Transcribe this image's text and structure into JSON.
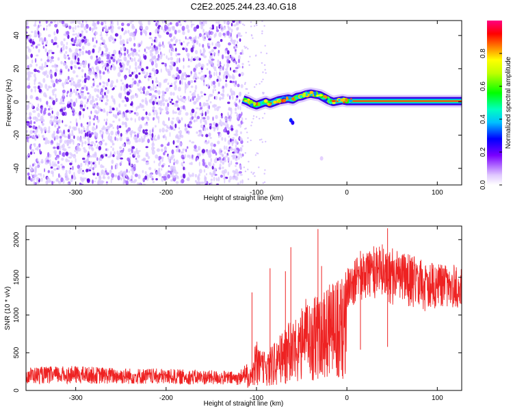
{
  "title": "C2E2.2025.244.23.40.G18",
  "colors": {
    "snr_line": "#ee2222",
    "scatter_base": "#a060ff",
    "scatter_dense": "#5a00e0",
    "trace_core": "#ff2222"
  },
  "chart_data": [
    {
      "type": "heatmap",
      "xlabel": "Height of straight line (km)",
      "ylabel": "Frequency (Hz)",
      "xlim": [
        -355,
        127
      ],
      "ylim": [
        -50,
        49
      ],
      "xticks": [
        -300,
        -200,
        -100,
        0,
        100
      ],
      "xtick_labels": [
        "-300",
        "-200",
        "-100",
        "0",
        "100"
      ],
      "yticks": [
        -40,
        -20,
        0,
        20,
        40
      ],
      "ytick_labels": [
        "-40",
        "-20",
        "0",
        "20",
        "40"
      ],
      "noise_region_x": [
        -355,
        -115
      ],
      "trace": {
        "x": [
          -115,
          -110,
          -105,
          -100,
          -95,
          -90,
          -85,
          -80,
          -75,
          -70,
          -65,
          -60,
          -55,
          -50,
          -45,
          -40,
          -35,
          -30,
          -25,
          -20,
          -15,
          -10,
          -5,
          0,
          5,
          10,
          127
        ],
        "freq": [
          1.5,
          0.5,
          -1,
          -2,
          -1,
          0,
          -1,
          0,
          1,
          1.5,
          2,
          1.5,
          3,
          3.5,
          4.5,
          5,
          4.5,
          4,
          2.5,
          1,
          0,
          0.5,
          1,
          0.5,
          0.5,
          0.5,
          0.5
        ]
      },
      "isolated_points": [
        {
          "x": -62,
          "freq": -11,
          "amp": 0.3
        },
        {
          "x": -60,
          "freq": -12.5,
          "amp": 0.25
        },
        {
          "x": -28,
          "freq": -34,
          "amp": 0.05
        }
      ]
    },
    {
      "type": "colorbar",
      "label": "Normalized spectral amplitude",
      "range": [
        0,
        1
      ],
      "ticks": [
        0.0,
        0.2,
        0.4,
        0.6,
        0.8
      ],
      "tick_labels": [
        "0.0",
        "0.2",
        "0.4",
        "0.6",
        "0.8"
      ]
    },
    {
      "type": "line",
      "xlabel": "Height of straight line (km)",
      "ylabel": "SNR (10 * v/v)",
      "xlim": [
        -355,
        127
      ],
      "ylim": [
        0,
        2180
      ],
      "xticks": [
        -300,
        -200,
        -100,
        0,
        100
      ],
      "xtick_labels": [
        "-300",
        "-200",
        "-100",
        "0",
        "100"
      ],
      "yticks": [
        0,
        500,
        1000,
        1500,
        2000
      ],
      "ytick_labels": [
        "0",
        "500",
        "1000",
        "1500",
        "2000"
      ],
      "series": [
        {
          "name": "SNR",
          "x": [
            -355,
            -300,
            -250,
            -200,
            -150,
            -120,
            -105,
            -100,
            -95,
            -90,
            -85,
            -80,
            -75,
            -70,
            -65,
            -60,
            -55,
            -50,
            -45,
            -40,
            -35,
            -30,
            -25,
            -20,
            -15,
            -10,
            -5,
            0,
            10,
            20,
            30,
            40,
            50,
            60,
            70,
            80,
            90,
            100,
            110,
            127
          ],
          "values": [
            250,
            260,
            240,
            230,
            215,
            200,
            350,
            700,
            500,
            550,
            600,
            700,
            750,
            800,
            900,
            1000,
            950,
            1100,
            1250,
            1200,
            1300,
            1300,
            1350,
            1400,
            1450,
            1500,
            1500,
            1650,
            1750,
            1850,
            1950,
            1950,
            1900,
            1850,
            1800,
            1750,
            1700,
            1700,
            1700,
            1650
          ]
        }
      ],
      "spike_points": [
        {
          "x": -105,
          "value": 1300
        },
        {
          "x": -85,
          "value": 1620
        },
        {
          "x": -68,
          "value": 1580
        },
        {
          "x": -62,
          "value": 1900
        },
        {
          "x": -32,
          "value": 2140
        },
        {
          "x": -28,
          "value": 1650
        },
        {
          "x": 15,
          "value": 1850
        },
        {
          "x": 45,
          "value": 2150
        }
      ]
    }
  ]
}
